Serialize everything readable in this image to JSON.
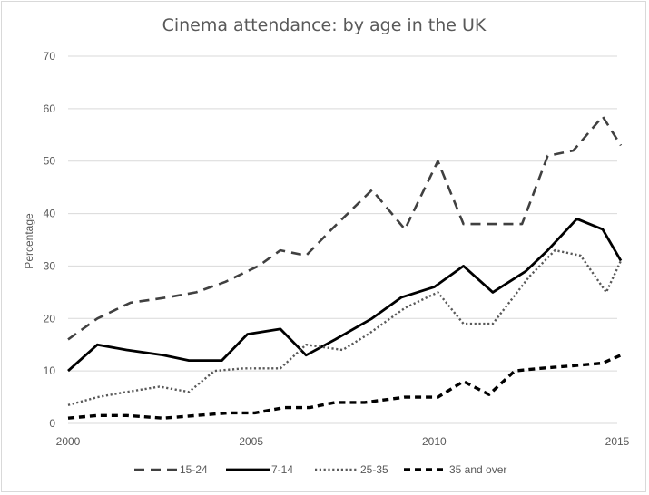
{
  "chart_data": {
    "type": "line",
    "title": "Cinema attendance: by age in the UK",
    "xlabel": "",
    "ylabel": "Percentage",
    "xlim": [
      2000,
      2015
    ],
    "ylim": [
      0,
      70
    ],
    "x_ticks": [
      "2000",
      "2005",
      "2010",
      "2015"
    ],
    "y_ticks": [
      "0",
      "10",
      "20",
      "30",
      "40",
      "50",
      "60",
      "70"
    ],
    "grid": "horizontal",
    "legend_position": "bottom",
    "x": [
      2000,
      2001,
      2002,
      2003,
      2004,
      2005,
      2006,
      2007,
      2008,
      2009,
      2010,
      2011,
      2012,
      2013,
      2014,
      2015
    ],
    "series": [
      {
        "name": "15-24",
        "style": "dashed",
        "color": "#404040",
        "points": [
          [
            2000,
            16
          ],
          [
            2000.8,
            20
          ],
          [
            2001.7,
            23
          ],
          [
            2002.7,
            24
          ],
          [
            2003.5,
            25
          ],
          [
            2004.3,
            27
          ],
          [
            2005.2,
            30
          ],
          [
            2005.8,
            33
          ],
          [
            2006.5,
            32
          ],
          [
            2007.2,
            37
          ],
          [
            2008.3,
            44.5
          ],
          [
            2009.2,
            37
          ],
          [
            2010.1,
            50
          ],
          [
            2010.8,
            38
          ],
          [
            2012.4,
            38
          ],
          [
            2013.1,
            51
          ],
          [
            2013.8,
            52
          ],
          [
            2014.6,
            58.5
          ],
          [
            2015.1,
            53
          ]
        ]
      },
      {
        "name": "7-14",
        "style": "solid",
        "color": "#000000",
        "points": [
          [
            2000,
            10
          ],
          [
            2000.8,
            15
          ],
          [
            2001.6,
            14
          ],
          [
            2002.6,
            13
          ],
          [
            2003.3,
            12
          ],
          [
            2004.2,
            12
          ],
          [
            2004.9,
            17
          ],
          [
            2005.8,
            18
          ],
          [
            2006.5,
            13
          ],
          [
            2007.3,
            16
          ],
          [
            2008.3,
            20
          ],
          [
            2009.1,
            24
          ],
          [
            2010,
            26
          ],
          [
            2010.8,
            30
          ],
          [
            2011.6,
            25
          ],
          [
            2012.5,
            29
          ],
          [
            2013.1,
            33
          ],
          [
            2013.9,
            39
          ],
          [
            2014.6,
            37
          ],
          [
            2015.1,
            31
          ]
        ]
      },
      {
        "name": "25-35",
        "style": "dotted",
        "color": "#595959",
        "points": [
          [
            2000,
            3.5
          ],
          [
            2000.8,
            5
          ],
          [
            2001.6,
            6
          ],
          [
            2002.5,
            7
          ],
          [
            2003.3,
            6
          ],
          [
            2004,
            10
          ],
          [
            2004.8,
            10.5
          ],
          [
            2005.8,
            10.5
          ],
          [
            2006.5,
            15
          ],
          [
            2007.5,
            14
          ],
          [
            2008.2,
            17
          ],
          [
            2009.2,
            22
          ],
          [
            2010.1,
            25
          ],
          [
            2010.8,
            19
          ],
          [
            2011.6,
            19
          ],
          [
            2012.6,
            28
          ],
          [
            2013.3,
            33
          ],
          [
            2014,
            32
          ],
          [
            2014.7,
            25
          ],
          [
            2015.1,
            31
          ]
        ]
      },
      {
        "name": "35 and over",
        "style": "bold-dashed",
        "color": "#000000",
        "points": [
          [
            2000,
            1
          ],
          [
            2000.8,
            1.5
          ],
          [
            2001.6,
            1.5
          ],
          [
            2002.6,
            1
          ],
          [
            2003.5,
            1.5
          ],
          [
            2004.4,
            2
          ],
          [
            2005.1,
            2
          ],
          [
            2005.9,
            3
          ],
          [
            2006.6,
            3
          ],
          [
            2007.3,
            4
          ],
          [
            2008.1,
            4
          ],
          [
            2009.2,
            5
          ],
          [
            2010.1,
            5
          ],
          [
            2010.8,
            8
          ],
          [
            2011.5,
            5.5
          ],
          [
            2012.2,
            10
          ],
          [
            2012.9,
            10.5
          ],
          [
            2013.8,
            11
          ],
          [
            2014.6,
            11.5
          ],
          [
            2015.1,
            13
          ]
        ]
      }
    ]
  }
}
